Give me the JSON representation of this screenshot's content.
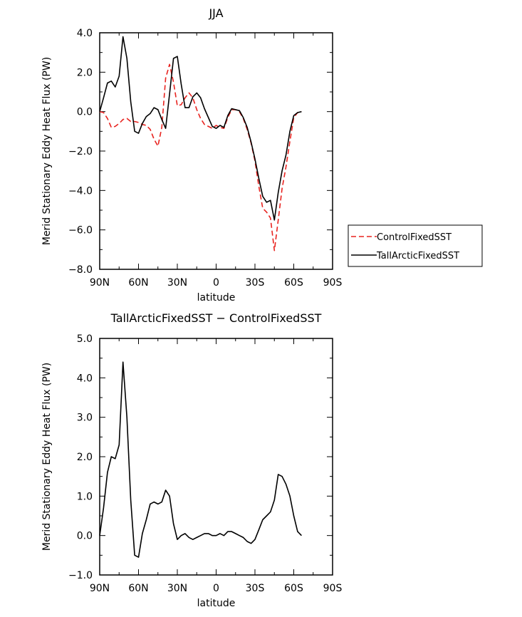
{
  "chart_data": [
    {
      "type": "line",
      "title": "JJA",
      "xlabel": "latitude",
      "ylabel": "Merid Stationary Eddy Heat Flux (PW)",
      "xlim": [
        90,
        -90
      ],
      "ylim": [
        -8,
        4
      ],
      "x_ticks": [
        90,
        60,
        30,
        0,
        -30,
        -60,
        -90
      ],
      "x_tick_labels": [
        "90N",
        "60N",
        "30N",
        "0",
        "30S",
        "60S",
        "90S"
      ],
      "y_ticks": [
        -8,
        -6,
        -4,
        -2,
        0,
        2,
        4
      ],
      "y_tick_labels": [
        "−8.0",
        "−6.0",
        "−4.0",
        "−2.0",
        "0.0",
        "2.0",
        "4.0"
      ],
      "legend": "right",
      "series": [
        {
          "name": "ControlFixedSST",
          "color": "#e8231f",
          "dash": "dashed",
          "points": [
            [
              90,
              0.0
            ],
            [
              87,
              -0.05
            ],
            [
              84,
              -0.35
            ],
            [
              81,
              -0.8
            ],
            [
              78,
              -0.75
            ],
            [
              75,
              -0.6
            ],
            [
              72,
              -0.4
            ],
            [
              69,
              -0.35
            ],
            [
              66,
              -0.5
            ],
            [
              63,
              -0.5
            ],
            [
              60,
              -0.55
            ],
            [
              57,
              -0.65
            ],
            [
              54,
              -0.7
            ],
            [
              51,
              -0.9
            ],
            [
              48,
              -1.4
            ],
            [
              45,
              -1.75
            ],
            [
              42,
              -0.8
            ],
            [
              39,
              1.7
            ],
            [
              36,
              2.4
            ],
            [
              33,
              1.5
            ],
            [
              30,
              0.3
            ],
            [
              27,
              0.35
            ],
            [
              24,
              0.7
            ],
            [
              21,
              0.95
            ],
            [
              18,
              0.7
            ],
            [
              15,
              0.1
            ],
            [
              12,
              -0.35
            ],
            [
              9,
              -0.65
            ],
            [
              6,
              -0.75
            ],
            [
              3,
              -0.85
            ],
            [
              0,
              -0.7
            ],
            [
              -3,
              -0.8
            ],
            [
              -6,
              -0.85
            ],
            [
              -9,
              -0.3
            ],
            [
              -12,
              0.1
            ],
            [
              -15,
              0.1
            ],
            [
              -18,
              0.0
            ],
            [
              -21,
              -0.35
            ],
            [
              -24,
              -0.9
            ],
            [
              -27,
              -1.6
            ],
            [
              -30,
              -2.5
            ],
            [
              -33,
              -3.8
            ],
            [
              -36,
              -4.9
            ],
            [
              -39,
              -5.1
            ],
            [
              -42,
              -5.4
            ],
            [
              -45,
              -7.05
            ],
            [
              -48,
              -5.5
            ],
            [
              -51,
              -3.9
            ],
            [
              -54,
              -2.8
            ],
            [
              -57,
              -1.5
            ],
            [
              -60,
              -0.3
            ],
            [
              -63,
              -0.05
            ],
            [
              -66,
              0.0
            ]
          ]
        },
        {
          "name": "TallArcticFixedSST",
          "color": "#000000",
          "dash": "solid",
          "points": [
            [
              90,
              0.0
            ],
            [
              87,
              0.7
            ],
            [
              84,
              1.45
            ],
            [
              81,
              1.55
            ],
            [
              78,
              1.25
            ],
            [
              75,
              1.8
            ],
            [
              72,
              3.8
            ],
            [
              69,
              2.7
            ],
            [
              66,
              0.5
            ],
            [
              63,
              -1.0
            ],
            [
              60,
              -1.1
            ],
            [
              57,
              -0.6
            ],
            [
              54,
              -0.25
            ],
            [
              51,
              -0.1
            ],
            [
              48,
              0.2
            ],
            [
              45,
              0.1
            ],
            [
              42,
              -0.4
            ],
            [
              39,
              -0.85
            ],
            [
              36,
              0.9
            ],
            [
              33,
              2.7
            ],
            [
              30,
              2.8
            ],
            [
              27,
              1.4
            ],
            [
              24,
              0.2
            ],
            [
              21,
              0.2
            ],
            [
              18,
              0.75
            ],
            [
              15,
              0.95
            ],
            [
              12,
              0.7
            ],
            [
              9,
              0.15
            ],
            [
              6,
              -0.3
            ],
            [
              3,
              -0.75
            ],
            [
              0,
              -0.85
            ],
            [
              -3,
              -0.7
            ],
            [
              -6,
              -0.8
            ],
            [
              -9,
              -0.2
            ],
            [
              -12,
              0.15
            ],
            [
              -15,
              0.1
            ],
            [
              -18,
              0.05
            ],
            [
              -21,
              -0.3
            ],
            [
              -24,
              -0.8
            ],
            [
              -27,
              -1.55
            ],
            [
              -30,
              -2.4
            ],
            [
              -33,
              -3.4
            ],
            [
              -36,
              -4.3
            ],
            [
              -39,
              -4.6
            ],
            [
              -42,
              -4.5
            ],
            [
              -45,
              -5.5
            ],
            [
              -48,
              -4.1
            ],
            [
              -51,
              -3.0
            ],
            [
              -54,
              -2.2
            ],
            [
              -57,
              -1.0
            ],
            [
              -60,
              -0.2
            ],
            [
              -63,
              -0.05
            ],
            [
              -66,
              0.0
            ]
          ]
        }
      ]
    },
    {
      "type": "line",
      "title": "TallArcticFixedSST − ControlFixedSST",
      "xlabel": "latitude",
      "ylabel": "Merid Stationary Eddy Heat Flux (PW)",
      "xlim": [
        90,
        -90
      ],
      "ylim": [
        -1,
        5
      ],
      "x_ticks": [
        90,
        60,
        30,
        0,
        -30,
        -60,
        -90
      ],
      "x_tick_labels": [
        "90N",
        "60N",
        "30N",
        "0",
        "30S",
        "60S",
        "90S"
      ],
      "y_ticks": [
        -1,
        0,
        1,
        2,
        3,
        4,
        5
      ],
      "y_tick_labels": [
        "−1.0",
        "0.0",
        "1.0",
        "2.0",
        "3.0",
        "4.0",
        "5.0"
      ],
      "series": [
        {
          "color": "#000000",
          "dash": "solid",
          "points": [
            [
              90,
              0.0
            ],
            [
              87,
              0.7
            ],
            [
              84,
              1.6
            ],
            [
              81,
              2.0
            ],
            [
              78,
              1.95
            ],
            [
              75,
              2.3
            ],
            [
              72,
              4.4
            ],
            [
              69,
              3.0
            ],
            [
              66,
              0.9
            ],
            [
              63,
              -0.5
            ],
            [
              60,
              -0.55
            ],
            [
              57,
              0.05
            ],
            [
              54,
              0.4
            ],
            [
              51,
              0.8
            ],
            [
              48,
              0.85
            ],
            [
              45,
              0.8
            ],
            [
              42,
              0.85
            ],
            [
              39,
              1.15
            ],
            [
              36,
              1.0
            ],
            [
              33,
              0.3
            ],
            [
              30,
              -0.1
            ],
            [
              27,
              0.0
            ],
            [
              24,
              0.05
            ],
            [
              21,
              -0.05
            ],
            [
              18,
              -0.1
            ],
            [
              15,
              -0.05
            ],
            [
              12,
              0.0
            ],
            [
              9,
              0.05
            ],
            [
              6,
              0.05
            ],
            [
              3,
              0.0
            ],
            [
              0,
              0.0
            ],
            [
              -3,
              0.05
            ],
            [
              -6,
              0.0
            ],
            [
              -9,
              0.1
            ],
            [
              -12,
              0.1
            ],
            [
              -15,
              0.05
            ],
            [
              -18,
              0.0
            ],
            [
              -21,
              -0.05
            ],
            [
              -24,
              -0.15
            ],
            [
              -27,
              -0.2
            ],
            [
              -30,
              -0.1
            ],
            [
              -33,
              0.15
            ],
            [
              -36,
              0.4
            ],
            [
              -39,
              0.5
            ],
            [
              -42,
              0.6
            ],
            [
              -45,
              0.9
            ],
            [
              -48,
              1.55
            ],
            [
              -51,
              1.5
            ],
            [
              -54,
              1.3
            ],
            [
              -57,
              1.0
            ],
            [
              -60,
              0.5
            ],
            [
              -63,
              0.1
            ],
            [
              -66,
              0.0
            ]
          ]
        }
      ]
    }
  ]
}
